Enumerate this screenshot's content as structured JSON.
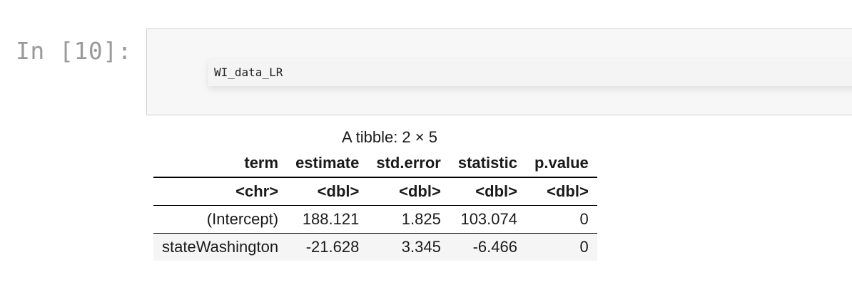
{
  "cell": {
    "prompt": "In [10]:",
    "code": "WI_data_LR"
  },
  "output": {
    "caption": "A tibble: 2 × 5",
    "columns": [
      "term",
      "estimate",
      "std.error",
      "statistic",
      "p.value"
    ],
    "types": [
      "<chr>",
      "<dbl>",
      "<dbl>",
      "<dbl>",
      "<dbl>"
    ],
    "rows": [
      [
        "(Intercept)",
        "188.121",
        "1.825",
        "103.074",
        "0"
      ],
      [
        "stateWashington",
        "-21.628",
        "3.345",
        "-6.466",
        "0"
      ]
    ]
  }
}
